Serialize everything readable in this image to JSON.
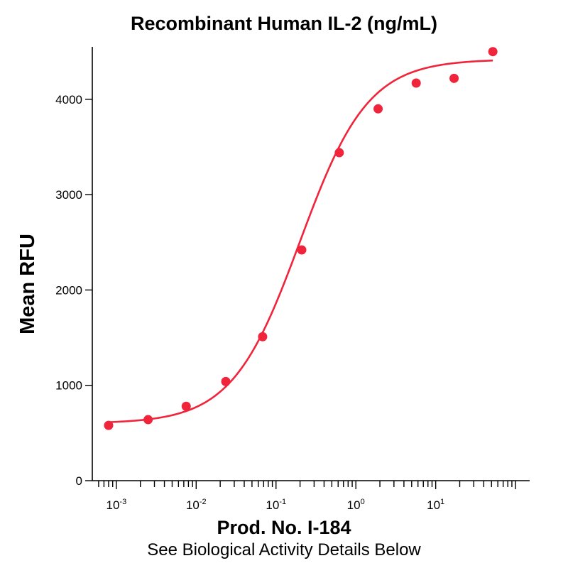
{
  "chart_data": {
    "type": "scatter",
    "title": "Recombinant Human IL-2 (ng/mL)",
    "xlabel": "Prod. No. I-184",
    "subtitle": "See Biological Activity Details Below",
    "ylabel": "Mean RFU",
    "x_scale": "log",
    "xlim": [
      0.0005,
      120
    ],
    "ylim": [
      0,
      4550
    ],
    "x_ticks": [
      {
        "base": "10",
        "exp": "-3",
        "value": 0.001
      },
      {
        "base": "10",
        "exp": "-2",
        "value": 0.01
      },
      {
        "base": "10",
        "exp": "-1",
        "value": 0.1
      },
      {
        "base": "10",
        "exp": "0",
        "value": 1
      },
      {
        "base": "10",
        "exp": "1",
        "value": 10
      }
    ],
    "y_ticks": [
      {
        "label": "0",
        "value": 0
      },
      {
        "label": "1000",
        "value": 1000
      },
      {
        "label": "2000",
        "value": 2000
      },
      {
        "label": "3000",
        "value": 3000
      },
      {
        "label": "4000",
        "value": 4000
      }
    ],
    "series": [
      {
        "points": [
          {
            "x": 0.0008,
            "y": 580
          },
          {
            "x": 0.0025,
            "y": 640
          },
          {
            "x": 0.0075,
            "y": 780
          },
          {
            "x": 0.0235,
            "y": 1040
          },
          {
            "x": 0.068,
            "y": 1510
          },
          {
            "x": 0.21,
            "y": 2420
          },
          {
            "x": 0.62,
            "y": 3440
          },
          {
            "x": 1.9,
            "y": 3900
          },
          {
            "x": 5.7,
            "y": 4170
          },
          {
            "x": 17,
            "y": 4220
          },
          {
            "x": 52,
            "y": 4500
          }
        ],
        "fit": {
          "model": "4PL",
          "bottom": 600,
          "top": 4420,
          "ec50": 0.2,
          "hill": 1.02,
          "x_range": [
            0.0008,
            52
          ]
        }
      }
    ],
    "colors": {
      "series": "#f0243a",
      "axis": "#000000"
    },
    "grid": false,
    "legend": "none"
  }
}
